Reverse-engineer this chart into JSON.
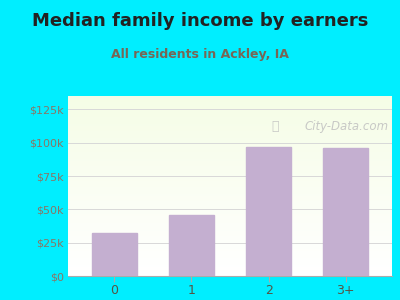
{
  "categories": [
    "0",
    "1",
    "2",
    "3+"
  ],
  "values": [
    32000,
    46000,
    97000,
    96000
  ],
  "bar_color": "#c4afd0",
  "title": "Median family income by earners",
  "subtitle": "All residents in Ackley, IA",
  "title_color": "#222222",
  "subtitle_color": "#776655",
  "outer_bg": "#00eeff",
  "yticks": [
    0,
    25000,
    50000,
    75000,
    100000,
    125000
  ],
  "ytick_labels": [
    "$0",
    "$25k",
    "$50k",
    "$75k",
    "$100k",
    "$125k"
  ],
  "ylim": [
    0,
    135000
  ],
  "grid_color": "#d8d8d8",
  "watermark": "City-Data.com",
  "watermark_color": "#c0c0c0",
  "title_fontsize": 13,
  "subtitle_fontsize": 9,
  "tick_label_color": "#887766"
}
